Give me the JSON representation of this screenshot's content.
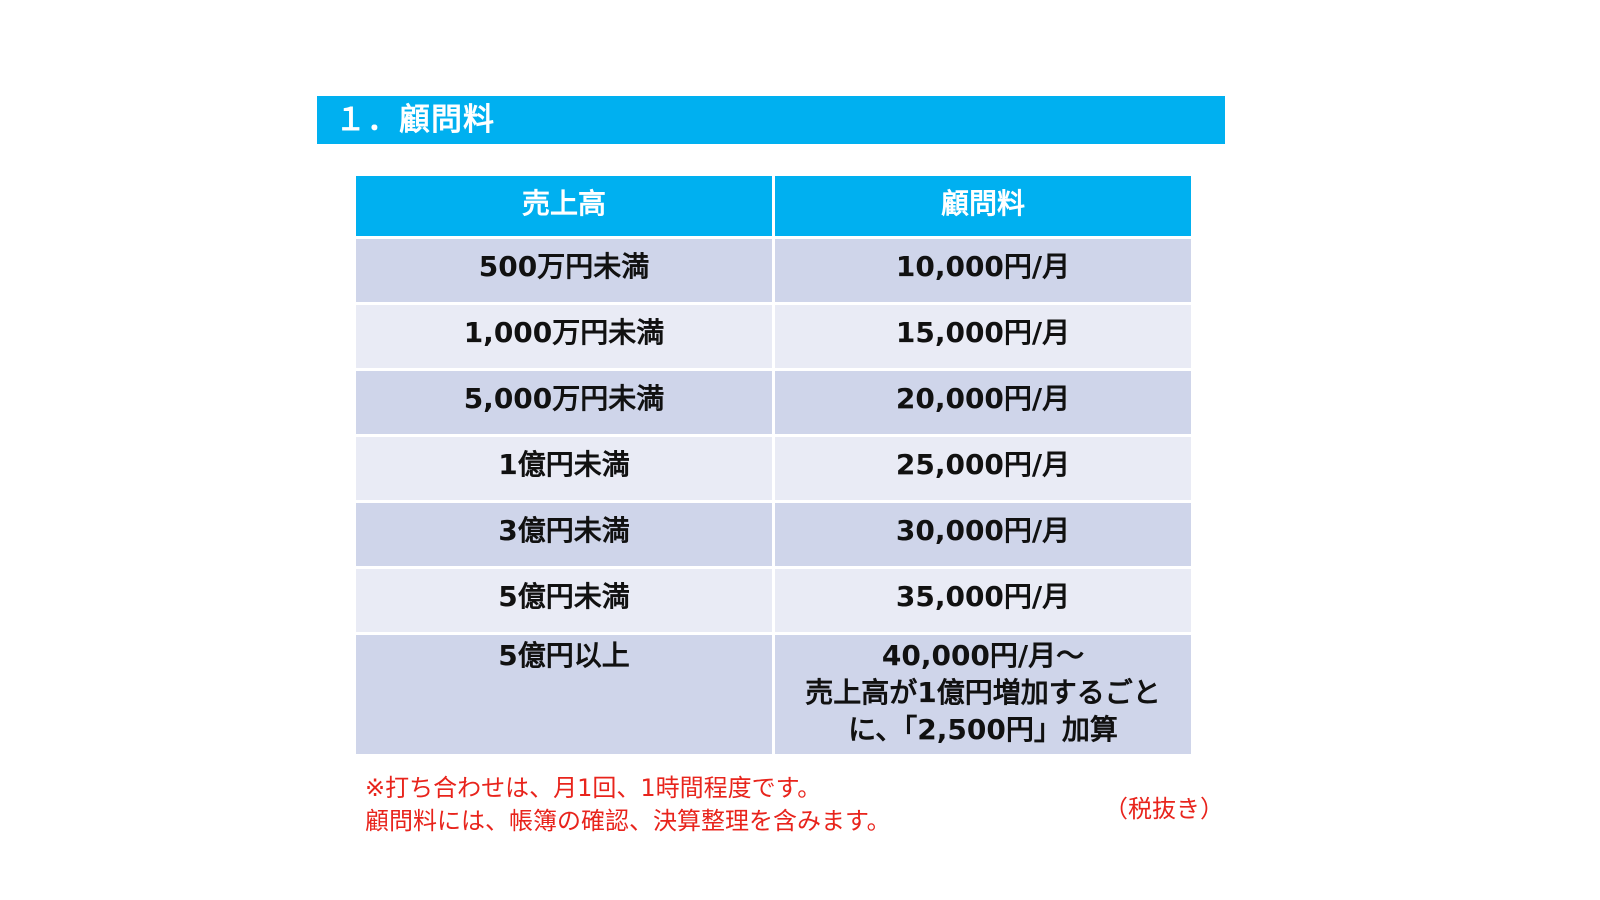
{
  "section": {
    "title": "１．顧問料"
  },
  "table": {
    "headers": [
      "売上高",
      "顧問料"
    ],
    "rows": [
      {
        "sales": "500万円未満",
        "fee": [
          "10,000円/月"
        ]
      },
      {
        "sales": "1,000万円未満",
        "fee": [
          "15,000円/月"
        ]
      },
      {
        "sales": "5,000万円未満",
        "fee": [
          "20,000円/月"
        ]
      },
      {
        "sales": "1億円未満",
        "fee": [
          "25,000円/月"
        ]
      },
      {
        "sales": "3億円未満",
        "fee": [
          "30,000円/月"
        ]
      },
      {
        "sales": "5億円未満",
        "fee": [
          "35,000円/月"
        ]
      },
      {
        "sales": "5億円以上",
        "fee": [
          "40,000円/月～",
          "売上高が1億円増加するごと",
          "に、「2,500円」加算"
        ]
      }
    ]
  },
  "notes": {
    "lines": [
      "※打ち合わせは、月1回、1時間程度です。",
      "顧問料には、帳簿の確認、決算整理を含みます。"
    ],
    "tax": "（税抜き）"
  },
  "colors": {
    "accent": "#00b0f0",
    "row_dark": "#cfd5ea",
    "row_light": "#e9ebf5",
    "note_text": "#e8241c"
  }
}
